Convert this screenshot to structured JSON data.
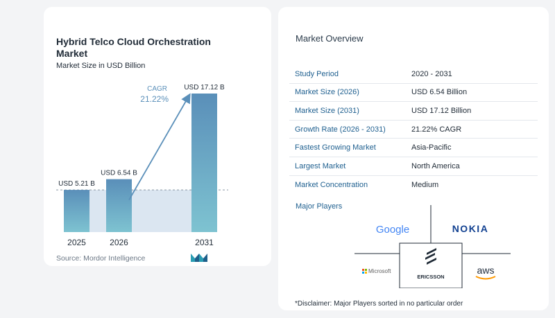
{
  "chart_data": {
    "type": "bar",
    "title": "Hybrid Telco Cloud Orchestration Market",
    "subtitle": "Market Size in USD Billion",
    "categories": [
      "2025",
      "2026",
      "2031"
    ],
    "values": [
      5.21,
      6.54,
      17.12
    ],
    "data_labels": [
      "USD 5.21 B",
      "USD 6.54 B",
      "USD 17.12 B"
    ],
    "cagr_label": "CAGR",
    "cagr_value": "21.22%",
    "ylim": [
      0,
      17.12
    ],
    "colors": {
      "bar_top": "#5a8fb9",
      "bar_bottom": "#7ec3d1",
      "shade": "#dbe6f1",
      "arrow": "#5a8fb9",
      "cagr_text": "#5a8fb9"
    }
  },
  "source": "Source: Mordor Intelligence",
  "logo_icon": "mordor-intelligence-logo",
  "overview": {
    "title": "Market Overview",
    "rows": [
      {
        "label": "Study Period",
        "value": "2020 - 2031"
      },
      {
        "label": "Market Size (2026)",
        "value": "USD 6.54 Billion"
      },
      {
        "label": "Market Size (2031)",
        "value": "USD 17.12 Billion"
      },
      {
        "label": "Growth Rate (2026 - 2031)",
        "value": "21.22% CAGR"
      },
      {
        "label": "Fastest Growing Market",
        "value": "Asia-Pacific"
      },
      {
        "label": "Largest Market",
        "value": "North America"
      },
      {
        "label": "Market Concentration",
        "value": "Medium"
      }
    ]
  },
  "players": {
    "title": "Major Players",
    "names": [
      "Google",
      "NOKIA",
      "Microsoft",
      "ERICSSON",
      "aws"
    ]
  },
  "disclaimer": "*Disclaimer: Major Players sorted in no particular order"
}
